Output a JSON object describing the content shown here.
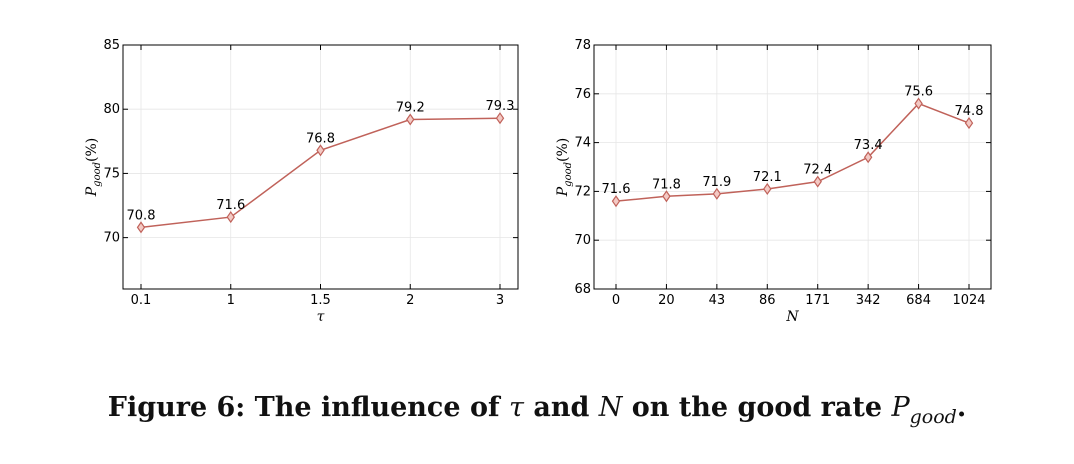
{
  "caption": {
    "prefix": "Figure 6: The influence of ",
    "tau": "τ",
    "and": " and ",
    "n": "N",
    "middle": " on the good rate ",
    "p": "P",
    "p_sub": "good",
    "suffix": "."
  },
  "chart_data": [
    {
      "type": "line",
      "xlabel": "τ",
      "ylabel": "P_good(%)",
      "ylabel_main": "P",
      "ylabel_sub": "good",
      "ylabel_unit": "(%)",
      "categories": [
        "0.1",
        "1",
        "1.5",
        "2",
        "3"
      ],
      "series": [
        {
          "values": [
            70.8,
            71.6,
            76.8,
            79.2,
            79.3
          ]
        }
      ],
      "data_labels": [
        "70.8",
        "71.6",
        "76.8",
        "79.2",
        "79.3"
      ],
      "ylim": [
        66,
        85
      ],
      "yticks": [
        70,
        75,
        80,
        85
      ],
      "grid": true,
      "line_color": "#c0625a",
      "marker": "diamond"
    },
    {
      "type": "line",
      "xlabel": "N",
      "ylabel": "P_good(%)",
      "ylabel_main": "P",
      "ylabel_sub": "good",
      "ylabel_unit": "(%)",
      "categories": [
        "0",
        "20",
        "43",
        "86",
        "171",
        "342",
        "684",
        "1024"
      ],
      "series": [
        {
          "values": [
            71.6,
            71.8,
            71.9,
            72.1,
            72.4,
            73.4,
            75.6,
            74.8
          ]
        }
      ],
      "data_labels": [
        "71.6",
        "71.8",
        "71.9",
        "72.1",
        "72.4",
        "73.4",
        "75.6",
        "74.8"
      ],
      "ylim": [
        68,
        78
      ],
      "yticks": [
        68,
        70,
        72,
        74,
        76,
        78
      ],
      "grid": true,
      "line_color": "#c0625a",
      "marker": "diamond"
    }
  ]
}
